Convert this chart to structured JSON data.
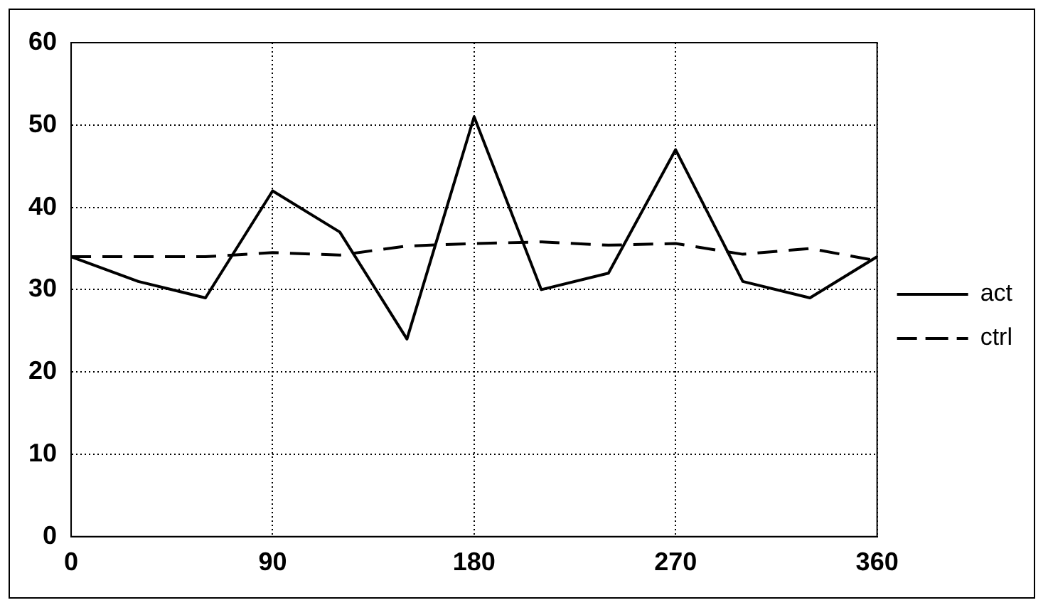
{
  "chart_data": {
    "type": "line",
    "x": [
      0,
      30,
      60,
      90,
      120,
      150,
      180,
      210,
      240,
      270,
      300,
      330,
      360
    ],
    "series": [
      {
        "name": "act",
        "color": "#000000",
        "line_style": "solid",
        "values": [
          34,
          31,
          29,
          42,
          37,
          24,
          51,
          30,
          32,
          47,
          31,
          29,
          34
        ]
      },
      {
        "name": "ctrl",
        "color": "#000000",
        "line_style": "dashed",
        "values": [
          34,
          34,
          34,
          34.5,
          34.2,
          35.3,
          35.6,
          35.8,
          35.4,
          35.6,
          34.3,
          35,
          33.5
        ]
      }
    ],
    "xlim": [
      0,
      360
    ],
    "xticks": [
      0,
      90,
      180,
      270,
      360
    ],
    "ylim": [
      0,
      60
    ],
    "yticks": [
      0,
      10,
      20,
      30,
      40,
      50,
      60
    ],
    "grid": true,
    "legend": "right",
    "marker": "none"
  }
}
